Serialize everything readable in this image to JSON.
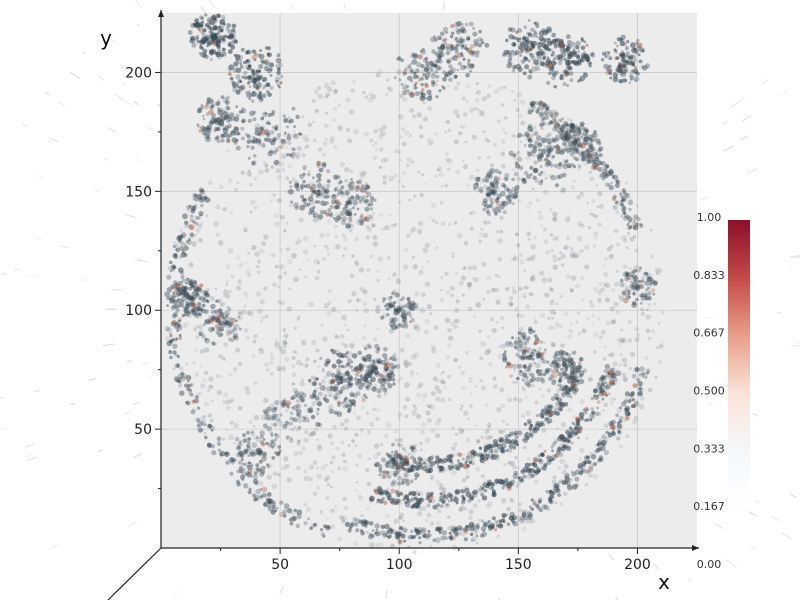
{
  "chart_data": {
    "type": "volume-render",
    "title": "",
    "xlabel": "x",
    "ylabel": "y",
    "xlim": [
      0,
      225
    ],
    "ylim": [
      0,
      225
    ],
    "x_ticks": [
      50,
      100,
      150,
      200
    ],
    "y_ticks": [
      50,
      100,
      150,
      200
    ],
    "grid": true,
    "colorbar": {
      "range": [
        0,
        1
      ],
      "ticks": [
        "1.00",
        "0.833",
        "0.667",
        "0.500",
        "0.333",
        "0.167",
        "0.00"
      ],
      "colors": [
        "#ffffff",
        "#f4f8fb",
        "#fbe3d8",
        "#e8a08a",
        "#c44a48",
        "#8a0f2a"
      ]
    },
    "colors": {
      "background_plane": "#ececec",
      "voxel": "#3a4b58",
      "voxel_hot": "#b0573a"
    },
    "regions": [
      {
        "x": 22,
        "y": 215,
        "r": 10,
        "intensity": 0.85
      },
      {
        "x": 40,
        "y": 200,
        "r": 12,
        "intensity": 0.75
      },
      {
        "x": 45,
        "y": 175,
        "r": 15,
        "intensity": 0.55
      },
      {
        "x": 25,
        "y": 180,
        "r": 10,
        "intensity": 0.6
      },
      {
        "x": 65,
        "y": 150,
        "r": 12,
        "intensity": 0.55
      },
      {
        "x": 80,
        "y": 145,
        "r": 10,
        "intensity": 0.5
      },
      {
        "x": 110,
        "y": 200,
        "r": 12,
        "intensity": 0.55
      },
      {
        "x": 125,
        "y": 210,
        "r": 12,
        "intensity": 0.6
      },
      {
        "x": 155,
        "y": 210,
        "r": 12,
        "intensity": 0.7
      },
      {
        "x": 170,
        "y": 205,
        "r": 12,
        "intensity": 0.75
      },
      {
        "x": 195,
        "y": 205,
        "r": 10,
        "intensity": 0.65
      },
      {
        "x": 160,
        "y": 165,
        "r": 14,
        "intensity": 0.6
      },
      {
        "x": 175,
        "y": 170,
        "r": 10,
        "intensity": 0.55
      },
      {
        "x": 140,
        "y": 150,
        "r": 10,
        "intensity": 0.5
      },
      {
        "x": 12,
        "y": 105,
        "r": 8,
        "intensity": 0.65
      },
      {
        "x": 25,
        "y": 95,
        "r": 10,
        "intensity": 0.45
      },
      {
        "x": 75,
        "y": 70,
        "r": 14,
        "intensity": 0.7
      },
      {
        "x": 90,
        "y": 75,
        "r": 10,
        "intensity": 0.6
      },
      {
        "x": 155,
        "y": 80,
        "r": 12,
        "intensity": 0.6
      },
      {
        "x": 170,
        "y": 75,
        "r": 8,
        "intensity": 0.5
      },
      {
        "x": 100,
        "y": 100,
        "r": 8,
        "intensity": 0.45
      },
      {
        "x": 200,
        "y": 110,
        "r": 8,
        "intensity": 0.45
      },
      {
        "x": 55,
        "y": 55,
        "r": 12,
        "intensity": 0.4
      },
      {
        "x": 40,
        "y": 40,
        "r": 10,
        "intensity": 0.5
      },
      {
        "x": 100,
        "y": 35,
        "r": 10,
        "intensity": 0.45
      }
    ],
    "arcs": [
      {
        "cx": 105,
        "cy": 100,
        "r": 100,
        "from_deg": 150,
        "to_deg": 250,
        "intensity": 0.55
      },
      {
        "cx": 110,
        "cy": 100,
        "r": 95,
        "from_deg": 250,
        "to_deg": 345,
        "intensity": 0.7
      },
      {
        "cx": 110,
        "cy": 105,
        "r": 85,
        "from_deg": 255,
        "to_deg": 340,
        "intensity": 0.75
      },
      {
        "cx": 110,
        "cy": 110,
        "r": 75,
        "from_deg": 260,
        "to_deg": 330,
        "intensity": 0.65
      },
      {
        "cx": 105,
        "cy": 100,
        "r": 100,
        "from_deg": 20,
        "to_deg": 60,
        "intensity": 0.45
      }
    ]
  }
}
